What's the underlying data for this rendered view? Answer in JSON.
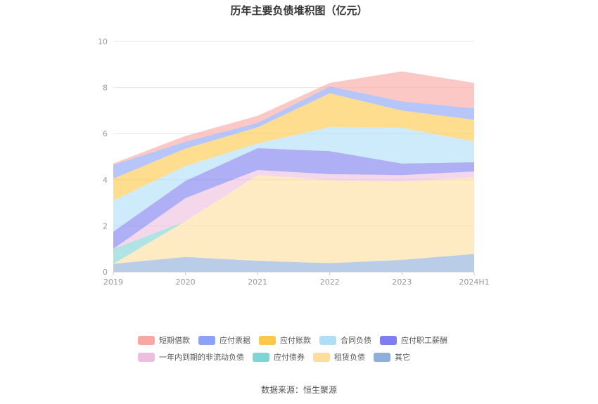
{
  "chart_data": {
    "type": "area",
    "stacked": true,
    "title": "历年主要负债堆积图（亿元）",
    "x": [
      "2019",
      "2020",
      "2021",
      "2022",
      "2023",
      "2024H1"
    ],
    "ylim": [
      0,
      10
    ],
    "yticks": [
      "0",
      "2",
      "4",
      "6",
      "8",
      "10"
    ],
    "grid": true,
    "legend_position": "bottom",
    "series": [
      {
        "name": "其它",
        "color": "#8eaedc",
        "values": [
          0.35,
          0.65,
          0.48,
          0.38,
          0.52,
          0.78
        ]
      },
      {
        "name": "租赁负债",
        "color": "#fedd9e",
        "values": [
          0.0,
          1.55,
          3.72,
          3.6,
          3.4,
          3.32
        ]
      },
      {
        "name": "应付债券",
        "color": "#7fd4d4",
        "values": [
          0.65,
          0.0,
          0.0,
          0.0,
          0.0,
          0.0
        ]
      },
      {
        "name": "一年内到期的非流动负债",
        "color": "#eebedf",
        "values": [
          0.0,
          1.0,
          0.22,
          0.26,
          0.28,
          0.26
        ]
      },
      {
        "name": "应付职工薪酬",
        "color": "#7e7ef0",
        "values": [
          0.75,
          0.75,
          0.95,
          1.0,
          0.5,
          0.4
        ]
      },
      {
        "name": "合同负债",
        "color": "#aedff7",
        "values": [
          1.35,
          0.65,
          0.2,
          1.05,
          1.55,
          0.9
        ]
      },
      {
        "name": "应付账款",
        "color": "#fdc84a",
        "values": [
          0.95,
          0.75,
          0.7,
          1.46,
          0.75,
          0.94
        ]
      },
      {
        "name": "应付票据",
        "color": "#8aa3f6",
        "values": [
          0.6,
          0.3,
          0.2,
          0.3,
          0.4,
          0.5
        ]
      },
      {
        "name": "短期借款",
        "color": "#f9a7a2",
        "values": [
          0.05,
          0.25,
          0.3,
          0.15,
          1.3,
          1.1
        ]
      }
    ]
  },
  "legend": {
    "row1": [
      {
        "label": "短期借款",
        "color": "#f9a7a2"
      },
      {
        "label": "应付票据",
        "color": "#8aa3f6"
      },
      {
        "label": "应付账款",
        "color": "#fdc84a"
      },
      {
        "label": "合同负债",
        "color": "#aedff7"
      },
      {
        "label": "应付职工薪酬",
        "color": "#7e7ef0"
      }
    ],
    "row2": [
      {
        "label": "一年内到期的非流动负债",
        "color": "#eebedf"
      },
      {
        "label": "应付债券",
        "color": "#7fd4d4"
      },
      {
        "label": "租赁负债",
        "color": "#fedd9e"
      },
      {
        "label": "其它",
        "color": "#8eaedc"
      }
    ]
  },
  "source": "数据来源：恒生聚源"
}
